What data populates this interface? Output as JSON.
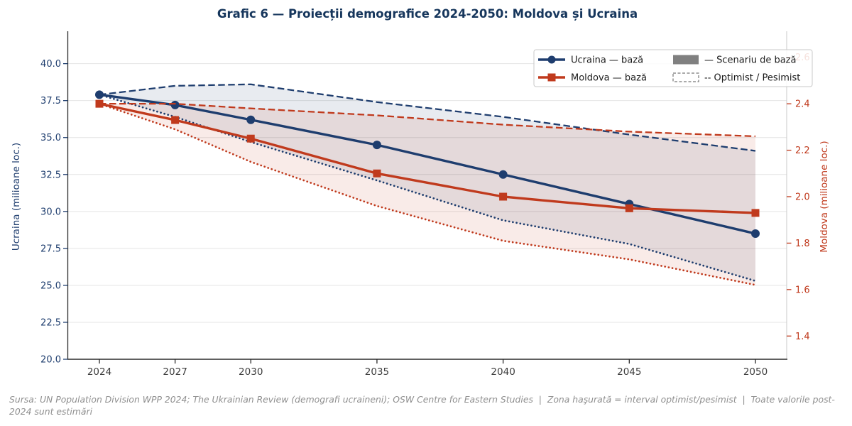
{
  "title": "Grafic 6 — Proiecții demografice 2024-2050: Moldova și Ucraina",
  "footer": "Sursa: UN Population Division WPP 2024; The Ukrainian Review (demografi ucraineni); OSW Centre for Eastern Studies  |  Zona haşurată = interval optimist/pesimist  |  Toate valorile post-2024 sunt estimări",
  "colors": {
    "ukraine": "#1e3d6e",
    "moldova": "#c03a1d",
    "title": "#16365c",
    "grid": "#e4e4e4",
    "spine_dark": "#2a2a2a",
    "spine_light": "#c9c9c9",
    "xtick": "#3d3d3d",
    "legend_text": "#1a1a1a",
    "legend_border": "#c9c9c9",
    "legend_gray_patch": "#808080"
  },
  "legend": {
    "items": [
      {
        "label": "Ucraina — bază"
      },
      {
        "label": "Moldova — bază"
      },
      {
        "label": "— Scenariu de bază"
      },
      {
        "label": "-- Optimist / Pesimist"
      }
    ]
  },
  "chart_data": {
    "type": "line",
    "x": [
      2024,
      2027,
      2030,
      2035,
      2040,
      2045,
      2050
    ],
    "x_ticks": [
      2024,
      2027,
      2030,
      2035,
      2040,
      2045,
      2050
    ],
    "grid": "horizontal-only",
    "legend_position": "upper right",
    "left_axis": {
      "label": "Ucraina (milioane loc.)",
      "ticks": [
        40.0,
        37.5,
        35.0,
        32.5,
        30.0,
        27.5,
        25.0,
        22.5,
        20.0
      ],
      "range": [
        20.0,
        42.0
      ]
    },
    "right_axis": {
      "label": "Moldova (milioane loc.)",
      "ticks": [
        2.6,
        2.4,
        2.2,
        2.0,
        1.8,
        1.6,
        1.4
      ],
      "range": [
        1.3,
        2.7
      ]
    },
    "series": [
      {
        "id": "ucraina-baza",
        "name": "Ucraina — bază",
        "axis": "left",
        "style": "solid",
        "marker": "circle",
        "values": [
          37.9,
          37.2,
          36.2,
          34.5,
          32.5,
          30.5,
          28.5
        ]
      },
      {
        "id": "ucraina-optimist",
        "name": "Ucraina — optimist",
        "axis": "left",
        "style": "dashed",
        "marker": "none",
        "values": [
          37.9,
          38.5,
          38.6,
          37.4,
          36.4,
          35.2,
          34.1
        ]
      },
      {
        "id": "ucraina-pesimist",
        "name": "Ucraina — pesimist",
        "axis": "left",
        "style": "dotted",
        "marker": "none",
        "values": [
          37.9,
          36.4,
          34.7,
          32.1,
          29.4,
          27.8,
          25.3
        ]
      },
      {
        "id": "moldova-baza",
        "name": "Moldova — bază",
        "axis": "right",
        "style": "solid",
        "marker": "square",
        "values": [
          2.4,
          2.33,
          2.25,
          2.1,
          2.0,
          1.95,
          1.93
        ]
      },
      {
        "id": "moldova-optimist",
        "name": "Moldova — optimist",
        "axis": "right",
        "style": "dashed",
        "marker": "none",
        "values": [
          2.4,
          2.4,
          2.38,
          2.35,
          2.31,
          2.28,
          2.26
        ]
      },
      {
        "id": "moldova-pesimist",
        "name": "Moldova — pesimist",
        "axis": "right",
        "style": "dotted",
        "marker": "none",
        "values": [
          2.4,
          2.29,
          2.15,
          1.96,
          1.81,
          1.73,
          1.62
        ]
      }
    ],
    "bands": [
      {
        "country": "ucraina",
        "upper": "ucraina-optimist",
        "lower": "ucraina-pesimist",
        "meaning": "interval optimist/pesimist"
      },
      {
        "country": "moldova",
        "upper": "moldova-optimist",
        "lower": "moldova-pesimist",
        "meaning": "interval optimist/pesimist"
      }
    ]
  }
}
